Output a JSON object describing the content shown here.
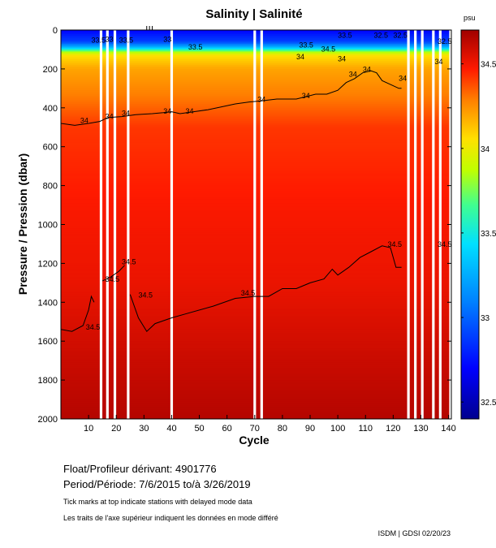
{
  "chart_data": {
    "type": "heatmap",
    "title": "Salinity | Salinité",
    "xlabel": "Cycle",
    "ylabel": "Pressure / Pression (dbar)",
    "x_range": [
      0,
      141
    ],
    "y_range": [
      0,
      2000
    ],
    "x_ticks": [
      10,
      20,
      30,
      40,
      50,
      60,
      70,
      80,
      90,
      100,
      110,
      120,
      130,
      140
    ],
    "y_ticks": [
      0,
      200,
      400,
      600,
      800,
      1000,
      1200,
      1400,
      1600,
      1800,
      2000
    ],
    "colorbar": {
      "unit": "psu",
      "min": 32.4,
      "max": 34.7,
      "ticks": [
        {
          "value": 32.5,
          "label": "32.5"
        },
        {
          "value": 33,
          "label": "33"
        },
        {
          "value": 33.5,
          "label": "33.5"
        },
        {
          "value": 34,
          "label": "34"
        },
        {
          "value": 34.5,
          "label": "34.5"
        }
      ]
    },
    "profile": [
      {
        "p": 0,
        "s": 32.7
      },
      {
        "p": 60,
        "s": 32.9
      },
      {
        "p": 90,
        "s": 33.3
      },
      {
        "p": 110,
        "s": 33.8
      },
      {
        "p": 130,
        "s": 34.05
      },
      {
        "p": 200,
        "s": 34.2
      },
      {
        "p": 350,
        "s": 34.3
      },
      {
        "p": 500,
        "s": 34.42
      },
      {
        "p": 900,
        "s": 34.48
      },
      {
        "p": 1300,
        "s": 34.52
      },
      {
        "p": 1700,
        "s": 34.6
      },
      {
        "p": 2000,
        "s": 34.65
      }
    ],
    "data_gaps_cycles": [
      14.5,
      16.8,
      19.5,
      24.3,
      40,
      70,
      72.5,
      125.5,
      128,
      130.5,
      134.5,
      137,
      140.7
    ],
    "contours": [
      {
        "level": "34",
        "points": [
          [
            0,
            480
          ],
          [
            5,
            490
          ],
          [
            10,
            480
          ],
          [
            14,
            470
          ],
          [
            17,
            450
          ],
          [
            22,
            445
          ],
          [
            27,
            435
          ],
          [
            33,
            430
          ],
          [
            37,
            425
          ],
          [
            40,
            420
          ],
          [
            43,
            430
          ],
          [
            48,
            420
          ],
          [
            53,
            410
          ],
          [
            58,
            395
          ],
          [
            63,
            380
          ],
          [
            68,
            370
          ],
          [
            72,
            365
          ],
          [
            78,
            355
          ],
          [
            85,
            355
          ],
          [
            92,
            330
          ],
          [
            96,
            330
          ],
          [
            100,
            310
          ],
          [
            103,
            270
          ],
          [
            106,
            250
          ],
          [
            109,
            220
          ],
          [
            112,
            210
          ],
          [
            114,
            220
          ],
          [
            116,
            260
          ],
          [
            119,
            280
          ],
          [
            122,
            300
          ],
          [
            123,
            300
          ]
        ]
      },
      {
        "level": "34.5",
        "points": [
          [
            0,
            1540
          ],
          [
            4,
            1550
          ],
          [
            8,
            1520
          ],
          [
            10,
            1440
          ],
          [
            11,
            1370
          ],
          [
            12,
            1400
          ]
        ]
      },
      {
        "level": "34.5",
        "points": [
          [
            15,
            1290
          ],
          [
            18,
            1270
          ],
          [
            21,
            1240
          ],
          [
            23,
            1210
          ]
        ]
      },
      {
        "level": "34.5",
        "points": [
          [
            25,
            1360
          ],
          [
            28,
            1480
          ],
          [
            31,
            1550
          ],
          [
            34,
            1510
          ],
          [
            40,
            1480
          ],
          [
            45,
            1460
          ],
          [
            55,
            1420
          ],
          [
            63,
            1380
          ],
          [
            70,
            1370
          ],
          [
            75,
            1370
          ],
          [
            80,
            1330
          ],
          [
            85,
            1330
          ],
          [
            90,
            1300
          ],
          [
            95,
            1280
          ],
          [
            98,
            1230
          ],
          [
            100,
            1260
          ],
          [
            104,
            1220
          ],
          [
            108,
            1170
          ],
          [
            112,
            1140
          ],
          [
            116,
            1110
          ],
          [
            119,
            1120
          ],
          [
            121,
            1220
          ],
          [
            123,
            1220
          ]
        ]
      }
    ],
    "contour_labels": [
      {
        "text": "34.5",
        "x": 9,
        "y": 1540
      },
      {
        "text": "34.5",
        "x": 16,
        "y": 1295
      },
      {
        "text": "34.5",
        "x": 22,
        "y": 1205
      },
      {
        "text": "34.5",
        "x": 28,
        "y": 1375
      },
      {
        "text": "34.5",
        "x": 65,
        "y": 1365
      },
      {
        "text": "34.5",
        "x": 118,
        "y": 1115
      },
      {
        "text": "34.5",
        "x": 136,
        "y": 1115
      },
      {
        "text": "34",
        "x": 7,
        "y": 478
      },
      {
        "text": "34",
        "x": 16,
        "y": 458
      },
      {
        "text": "34",
        "x": 22,
        "y": 440
      },
      {
        "text": "34",
        "x": 37,
        "y": 430
      },
      {
        "text": "34",
        "x": 45,
        "y": 430
      },
      {
        "text": "34",
        "x": 71,
        "y": 370
      },
      {
        "text": "34",
        "x": 87,
        "y": 350
      },
      {
        "text": "34",
        "x": 104,
        "y": 240
      },
      {
        "text": "34",
        "x": 109,
        "y": 215
      },
      {
        "text": "34",
        "x": 122,
        "y": 260
      },
      {
        "text": "34",
        "x": 135,
        "y": 175
      },
      {
        "text": "33",
        "x": 37,
        "y": 60
      },
      {
        "text": "33.5",
        "x": 11,
        "y": 65
      },
      {
        "text": "33.5",
        "x": 21,
        "y": 65
      },
      {
        "text": "33.5",
        "x": 46,
        "y": 100
      },
      {
        "text": "33",
        "x": 16,
        "y": 60
      },
      {
        "text": "33.5",
        "x": 86,
        "y": 90
      },
      {
        "text": "34.5",
        "x": 94,
        "y": 110
      },
      {
        "text": "33.5",
        "x": 100,
        "y": 40
      },
      {
        "text": "32.5",
        "x": 113,
        "y": 40
      },
      {
        "text": "32.5",
        "x": 120,
        "y": 40
      },
      {
        "text": "32.5",
        "x": 136,
        "y": 70
      },
      {
        "text": "34",
        "x": 85,
        "y": 150
      },
      {
        "text": "34",
        "x": 100,
        "y": 160
      }
    ],
    "delayed_mode_ticks": [
      31,
      32,
      33
    ]
  },
  "info": {
    "float_label": "Float/Profileur dérivant:",
    "float_id": "4901776",
    "period_label": "Period/Période:",
    "period_value": "7/6/2015  to/à  3/26/2019",
    "note_en": "Tick marks at top indicate stations with delayed mode data",
    "note_fr": "Les traits de l'axe supérieur indiquent les données en mode différé",
    "credit": "ISDM | GDSI  02/20/23"
  }
}
